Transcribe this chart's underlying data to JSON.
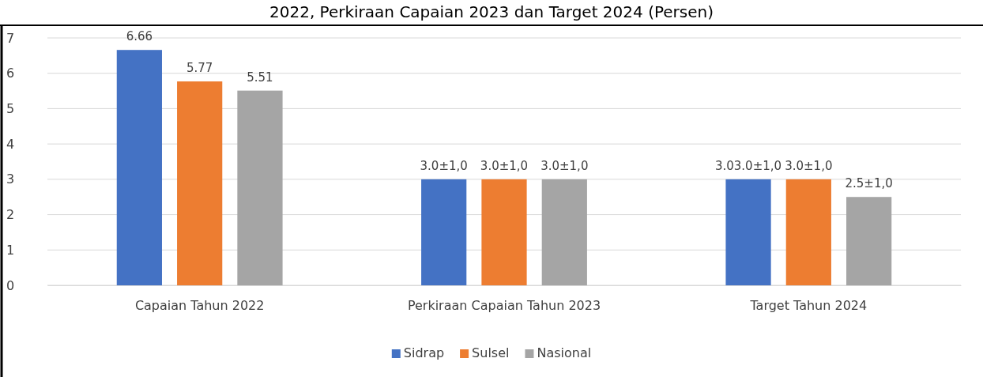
{
  "chart_data": {
    "type": "bar",
    "title": "2022, Perkiraan Capaian 2023 dan Target 2024 (Persen)",
    "categories": [
      "Capaian Tahun 2022",
      "Perkiraan Capaian Tahun 2023",
      "Target Tahun 2024"
    ],
    "series": [
      {
        "name": "Sidrap",
        "color": "#4472c4",
        "values": [
          6.66,
          3.0,
          3.0
        ],
        "value_labels": [
          "6.66",
          "3.0±1,0",
          "3.03.0±1,0"
        ]
      },
      {
        "name": "Sulsel",
        "color": "#ed7d31",
        "values": [
          5.77,
          3.0,
          3.0
        ],
        "value_labels": [
          "5.77",
          "3.0±1,0",
          "3.0±1,0"
        ]
      },
      {
        "name": "Nasional",
        "color": "#a5a5a5",
        "values": [
          5.51,
          3.0,
          2.5
        ],
        "value_labels": [
          "5.51",
          "3.0±1,0",
          "2.5±1,0"
        ]
      }
    ],
    "ylim": [
      0,
      7
    ],
    "yticks": [
      0,
      1,
      2,
      3,
      4,
      5,
      6,
      7
    ],
    "grid": "y",
    "legend": "bottom"
  }
}
